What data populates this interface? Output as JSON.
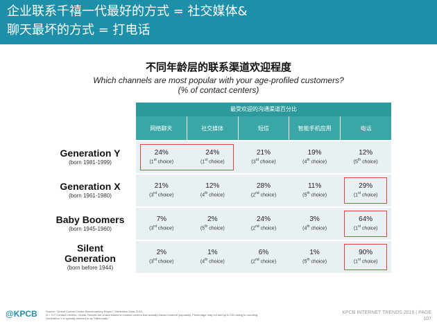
{
  "header": {
    "title_line1": "企业联系千禧一代最好的方式 = 社交媒体&",
    "title_line2": "聊天最坏的方式 = 打电话"
  },
  "subtitle": {
    "cn": "不同年龄层的联系渠道欢迎程度",
    "en_line1": "Which channels are most popular with your age-profiled customers?",
    "en_line2": "(% of contact centers)"
  },
  "colors": {
    "header_bg": "#1d8fa8",
    "table_head": "#2c9a9a",
    "row_bg": "#e9f0f3",
    "highlight": "#d9473e"
  },
  "chart_data": {
    "type": "table",
    "title": "最受欢迎的沟通渠道百分比",
    "columns": [
      "网络聊天",
      "社交媒体",
      "短信",
      "智能手机应用",
      "电话"
    ],
    "rows": [
      {
        "name": "Generation Y",
        "name2": "",
        "born": "(born 1981-1999)",
        "values": [
          "24%",
          "24%",
          "21%",
          "19%",
          "12%"
        ],
        "choice_num": [
          "1",
          "1",
          "3",
          "4",
          "5"
        ],
        "choice_sup": [
          "st",
          "st",
          "rd",
          "th",
          "th"
        ]
      },
      {
        "name": "Generation X",
        "name2": "",
        "born": "(born 1961-1980)",
        "values": [
          "21%",
          "12%",
          "28%",
          "11%",
          "29%"
        ],
        "choice_num": [
          "3",
          "4",
          "2",
          "5",
          "1"
        ],
        "choice_sup": [
          "rd",
          "th",
          "nd",
          "th",
          "st"
        ]
      },
      {
        "name": "Baby Boomers",
        "name2": "",
        "born": "(born 1945-1960)",
        "values": [
          "7%",
          "2%",
          "24%",
          "3%",
          "64%"
        ],
        "choice_num": [
          "3",
          "5",
          "2",
          "4",
          "1"
        ],
        "choice_sup": [
          "rd",
          "th",
          "nd",
          "th",
          "st"
        ]
      },
      {
        "name": "Silent",
        "name2": "Generation",
        "born": "(born before 1944)",
        "values": [
          "2%",
          "1%",
          "6%",
          "1%",
          "90%"
        ],
        "choice_num": [
          "3",
          "4",
          "2",
          "5",
          "1"
        ],
        "choice_sup": [
          "rd",
          "th",
          "nd",
          "th",
          "st"
        ]
      }
    ],
    "choice_word": "choice"
  },
  "footer": {
    "logo": "@KPCB",
    "source_line1": "Source: \"Global Contact Center Benchmarking Report,\" Dimension Data, 2015.",
    "source_line2": "N = 717 Contact Centers, Global. Results are shown based on contact centers that actually tracked channel popularity. Percentage may not add up to 100 owing to rounding.",
    "source_line3": "Generation Y is typically referred to as \"Millennials.\"",
    "brand": "KPCB INTERNET TRENDS 2016",
    "separator": "|",
    "page_label": "PAGE",
    "page_number": "107"
  }
}
